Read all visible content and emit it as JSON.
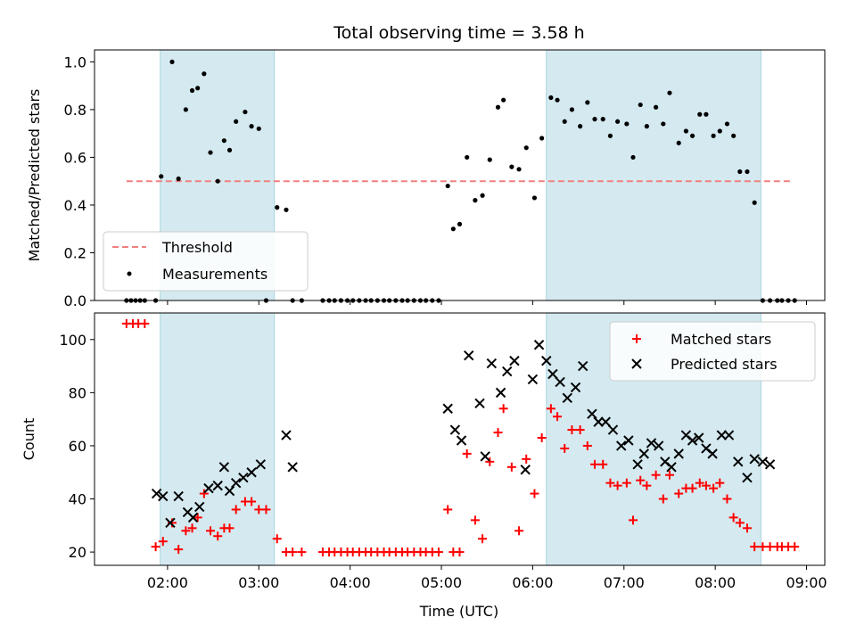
{
  "chart_data": {
    "title": "Total observing time = 3.58 h",
    "xlabel": "Time (UTC)",
    "x_ticks": [
      "02:00",
      "03:00",
      "04:00",
      "05:00",
      "06:00",
      "07:00",
      "08:00",
      "09:00"
    ],
    "x_tick_hours": [
      2,
      3,
      4,
      5,
      6,
      7,
      8,
      9
    ],
    "xlim": [
      1.2,
      9.2
    ],
    "shaded_intervals": [
      [
        1.92,
        3.17
      ],
      [
        6.15,
        8.5
      ]
    ],
    "shade_color": "#d4eaf0",
    "panels": [
      {
        "type": "scatter",
        "ylabel": "Matched/Predicted stars",
        "ylim": [
          0,
          1.05
        ],
        "y_ticks": [
          "0.0",
          "0.2",
          "0.4",
          "0.6",
          "0.8",
          "1.0"
        ],
        "y_tick_values": [
          0,
          0.2,
          0.4,
          0.6,
          0.8,
          1.0
        ],
        "legend_position": "lower-left",
        "threshold": {
          "name": "Threshold",
          "y": 0.5,
          "x_start": 1.55,
          "x_end": 8.85,
          "color": "#f08080"
        },
        "series": [
          {
            "name": "Measurements",
            "color": "#000000",
            "x": [
              1.55,
              1.6,
              1.65,
              1.7,
              1.75,
              1.87,
              1.93,
              2.05,
              2.12,
              2.2,
              2.27,
              2.33,
              2.4,
              2.47,
              2.55,
              2.62,
              2.68,
              2.75,
              2.85,
              2.92,
              3.0,
              3.08,
              3.2,
              3.3,
              3.37,
              3.47,
              3.7,
              3.77,
              3.83,
              3.9,
              3.97,
              4.03,
              4.1,
              4.17,
              4.23,
              4.3,
              4.37,
              4.43,
              4.5,
              4.57,
              4.63,
              4.7,
              4.77,
              4.83,
              4.9,
              4.97,
              5.07,
              5.13,
              5.2,
              5.28,
              5.37,
              5.45,
              5.53,
              5.62,
              5.68,
              5.77,
              5.85,
              5.93,
              6.02,
              6.1,
              6.2,
              6.27,
              6.35,
              6.43,
              6.52,
              6.6,
              6.68,
              6.77,
              6.85,
              6.93,
              7.03,
              7.1,
              7.18,
              7.25,
              7.35,
              7.43,
              7.5,
              7.6,
              7.68,
              7.75,
              7.83,
              7.9,
              7.98,
              8.05,
              8.13,
              8.2,
              8.27,
              8.35,
              8.43,
              8.52,
              8.6,
              8.68,
              8.73,
              8.8,
              8.87
            ],
            "y": [
              0.0,
              0.0,
              0.0,
              0.0,
              0.0,
              0.0,
              0.52,
              1.0,
              0.51,
              0.8,
              0.88,
              0.89,
              0.95,
              0.62,
              0.5,
              0.67,
              0.63,
              0.75,
              0.79,
              0.73,
              0.72,
              0.0,
              0.39,
              0.38,
              0.0,
              0.0,
              0.0,
              0.0,
              0.0,
              0.0,
              0.0,
              0.0,
              0.0,
              0.0,
              0.0,
              0.0,
              0.0,
              0.0,
              0.0,
              0.0,
              0.0,
              0.0,
              0.0,
              0.0,
              0.0,
              0.0,
              0.48,
              0.3,
              0.32,
              0.6,
              0.42,
              0.44,
              0.59,
              0.81,
              0.84,
              0.56,
              0.55,
              0.64,
              0.43,
              0.68,
              0.85,
              0.84,
              0.75,
              0.8,
              0.73,
              0.83,
              0.76,
              0.76,
              0.69,
              0.75,
              0.74,
              0.6,
              0.82,
              0.73,
              0.81,
              0.74,
              0.87,
              0.66,
              0.71,
              0.69,
              0.78,
              0.78,
              0.69,
              0.71,
              0.74,
              0.69,
              0.54,
              0.54,
              0.41,
              0.0,
              0.0,
              0.0,
              0.0,
              0.0,
              0.0
            ]
          }
        ]
      },
      {
        "type": "scatter",
        "ylabel": "Count",
        "ylim": [
          15,
          110
        ],
        "y_ticks": [
          "20",
          "40",
          "60",
          "80",
          "100"
        ],
        "y_tick_values": [
          20,
          40,
          60,
          80,
          100
        ],
        "legend_position": "upper-right",
        "series": [
          {
            "name": "Matched stars",
            "marker": "plus",
            "color": "#ff0000",
            "x": [
              1.55,
              1.62,
              1.68,
              1.75,
              1.87,
              1.95,
              2.05,
              2.12,
              2.2,
              2.27,
              2.33,
              2.4,
              2.47,
              2.55,
              2.62,
              2.68,
              2.75,
              2.85,
              2.92,
              3.0,
              3.08,
              3.2,
              3.3,
              3.37,
              3.47,
              3.7,
              3.77,
              3.83,
              3.9,
              3.97,
              4.03,
              4.1,
              4.17,
              4.23,
              4.3,
              4.37,
              4.43,
              4.5,
              4.57,
              4.63,
              4.7,
              4.77,
              4.83,
              4.9,
              4.97,
              5.07,
              5.13,
              5.2,
              5.28,
              5.37,
              5.45,
              5.53,
              5.62,
              5.68,
              5.77,
              5.85,
              5.93,
              6.02,
              6.1,
              6.2,
              6.27,
              6.35,
              6.43,
              6.52,
              6.6,
              6.68,
              6.77,
              6.85,
              6.93,
              7.03,
              7.1,
              7.18,
              7.25,
              7.35,
              7.43,
              7.5,
              7.6,
              7.68,
              7.75,
              7.83,
              7.9,
              7.98,
              8.05,
              8.13,
              8.2,
              8.27,
              8.35,
              8.43,
              8.52,
              8.6,
              8.68,
              8.73,
              8.8,
              8.87
            ],
            "y": [
              106,
              106,
              106,
              106,
              22,
              24,
              31,
              21,
              28,
              29,
              33,
              42,
              28,
              26,
              29,
              29,
              36,
              39,
              39,
              36,
              36,
              25,
              20,
              20,
              20,
              20,
              20,
              20,
              20,
              20,
              20,
              20,
              20,
              20,
              20,
              20,
              20,
              20,
              20,
              20,
              20,
              20,
              20,
              20,
              20,
              36,
              20,
              20,
              57,
              32,
              25,
              54,
              65,
              74,
              52,
              28,
              55,
              42,
              63,
              74,
              71,
              59,
              66,
              66,
              60,
              53,
              53,
              46,
              45,
              46,
              32,
              47,
              45,
              49,
              40,
              49,
              42,
              44,
              44,
              46,
              45,
              44,
              46,
              40,
              33,
              31,
              29,
              22,
              22,
              22,
              22,
              22,
              22,
              22
            ]
          },
          {
            "name": "Predicted stars",
            "marker": "x",
            "color": "#000000",
            "x": [
              1.88,
              1.95,
              2.03,
              2.12,
              2.22,
              2.28,
              2.35,
              2.45,
              2.55,
              2.62,
              2.68,
              2.75,
              2.83,
              2.92,
              3.02,
              3.3,
              3.37,
              5.07,
              5.15,
              5.22,
              5.3,
              5.42,
              5.48,
              5.55,
              5.65,
              5.72,
              5.8,
              5.92,
              6.0,
              6.07,
              6.15,
              6.22,
              6.3,
              6.38,
              6.47,
              6.55,
              6.65,
              6.72,
              6.8,
              6.88,
              6.97,
              7.05,
              7.15,
              7.22,
              7.3,
              7.38,
              7.45,
              7.52,
              7.6,
              7.68,
              7.75,
              7.82,
              7.9,
              7.97,
              8.07,
              8.15,
              8.25,
              8.35,
              8.43,
              8.52,
              8.6
            ],
            "y": [
              42,
              41,
              31,
              41,
              35,
              33,
              37,
              44,
              45,
              52,
              43,
              46,
              48,
              50,
              53,
              64,
              52,
              74,
              66,
              62,
              94,
              76,
              56,
              91,
              80,
              88,
              92,
              51,
              85,
              98,
              92,
              87,
              84,
              78,
              82,
              90,
              72,
              69,
              69,
              66,
              60,
              62,
              53,
              57,
              61,
              60,
              54,
              52,
              57,
              64,
              62,
              63,
              59,
              57,
              64,
              64,
              54,
              48,
              55,
              54,
              53
            ]
          }
        ]
      }
    ]
  }
}
